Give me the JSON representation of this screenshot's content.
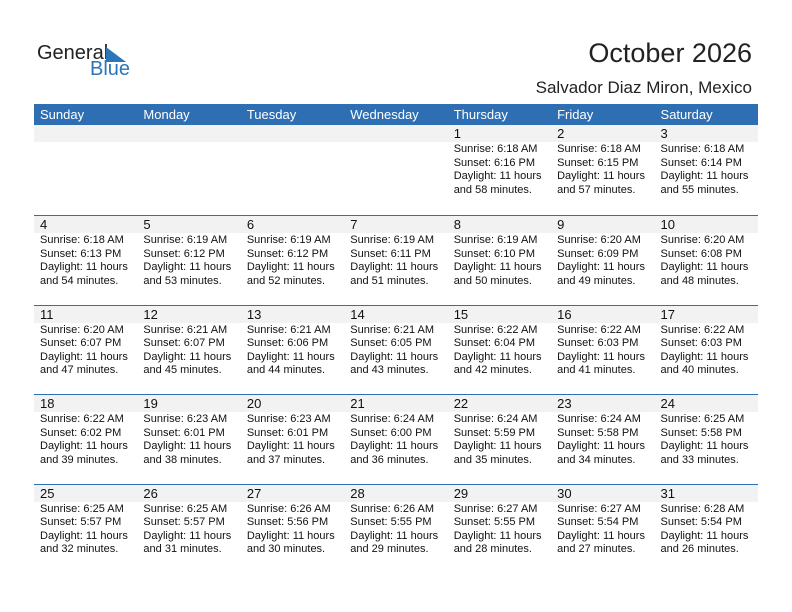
{
  "logo": {
    "text1": "General",
    "text2": "Blue"
  },
  "title": "October 2026",
  "location": "Salvador Diaz Miron, Mexico",
  "days": [
    "Sunday",
    "Monday",
    "Tuesday",
    "Wednesday",
    "Thursday",
    "Friday",
    "Saturday"
  ],
  "weeks": [
    [
      null,
      null,
      null,
      null,
      {
        "d": "1",
        "sr": "Sunrise: 6:18 AM",
        "ss": "Sunset: 6:16 PM",
        "dl": "Daylight: 11 hours",
        "dm": "and 58 minutes."
      },
      {
        "d": "2",
        "sr": "Sunrise: 6:18 AM",
        "ss": "Sunset: 6:15 PM",
        "dl": "Daylight: 11 hours",
        "dm": "and 57 minutes."
      },
      {
        "d": "3",
        "sr": "Sunrise: 6:18 AM",
        "ss": "Sunset: 6:14 PM",
        "dl": "Daylight: 11 hours",
        "dm": "and 55 minutes."
      }
    ],
    [
      {
        "d": "4",
        "sr": "Sunrise: 6:18 AM",
        "ss": "Sunset: 6:13 PM",
        "dl": "Daylight: 11 hours",
        "dm": "and 54 minutes."
      },
      {
        "d": "5",
        "sr": "Sunrise: 6:19 AM",
        "ss": "Sunset: 6:12 PM",
        "dl": "Daylight: 11 hours",
        "dm": "and 53 minutes."
      },
      {
        "d": "6",
        "sr": "Sunrise: 6:19 AM",
        "ss": "Sunset: 6:12 PM",
        "dl": "Daylight: 11 hours",
        "dm": "and 52 minutes."
      },
      {
        "d": "7",
        "sr": "Sunrise: 6:19 AM",
        "ss": "Sunset: 6:11 PM",
        "dl": "Daylight: 11 hours",
        "dm": "and 51 minutes."
      },
      {
        "d": "8",
        "sr": "Sunrise: 6:19 AM",
        "ss": "Sunset: 6:10 PM",
        "dl": "Daylight: 11 hours",
        "dm": "and 50 minutes."
      },
      {
        "d": "9",
        "sr": "Sunrise: 6:20 AM",
        "ss": "Sunset: 6:09 PM",
        "dl": "Daylight: 11 hours",
        "dm": "and 49 minutes."
      },
      {
        "d": "10",
        "sr": "Sunrise: 6:20 AM",
        "ss": "Sunset: 6:08 PM",
        "dl": "Daylight: 11 hours",
        "dm": "and 48 minutes."
      }
    ],
    [
      {
        "d": "11",
        "sr": "Sunrise: 6:20 AM",
        "ss": "Sunset: 6:07 PM",
        "dl": "Daylight: 11 hours",
        "dm": "and 47 minutes."
      },
      {
        "d": "12",
        "sr": "Sunrise: 6:21 AM",
        "ss": "Sunset: 6:07 PM",
        "dl": "Daylight: 11 hours",
        "dm": "and 45 minutes."
      },
      {
        "d": "13",
        "sr": "Sunrise: 6:21 AM",
        "ss": "Sunset: 6:06 PM",
        "dl": "Daylight: 11 hours",
        "dm": "and 44 minutes."
      },
      {
        "d": "14",
        "sr": "Sunrise: 6:21 AM",
        "ss": "Sunset: 6:05 PM",
        "dl": "Daylight: 11 hours",
        "dm": "and 43 minutes."
      },
      {
        "d": "15",
        "sr": "Sunrise: 6:22 AM",
        "ss": "Sunset: 6:04 PM",
        "dl": "Daylight: 11 hours",
        "dm": "and 42 minutes."
      },
      {
        "d": "16",
        "sr": "Sunrise: 6:22 AM",
        "ss": "Sunset: 6:03 PM",
        "dl": "Daylight: 11 hours",
        "dm": "and 41 minutes."
      },
      {
        "d": "17",
        "sr": "Sunrise: 6:22 AM",
        "ss": "Sunset: 6:03 PM",
        "dl": "Daylight: 11 hours",
        "dm": "and 40 minutes."
      }
    ],
    [
      {
        "d": "18",
        "sr": "Sunrise: 6:22 AM",
        "ss": "Sunset: 6:02 PM",
        "dl": "Daylight: 11 hours",
        "dm": "and 39 minutes."
      },
      {
        "d": "19",
        "sr": "Sunrise: 6:23 AM",
        "ss": "Sunset: 6:01 PM",
        "dl": "Daylight: 11 hours",
        "dm": "and 38 minutes."
      },
      {
        "d": "20",
        "sr": "Sunrise: 6:23 AM",
        "ss": "Sunset: 6:01 PM",
        "dl": "Daylight: 11 hours",
        "dm": "and 37 minutes."
      },
      {
        "d": "21",
        "sr": "Sunrise: 6:24 AM",
        "ss": "Sunset: 6:00 PM",
        "dl": "Daylight: 11 hours",
        "dm": "and 36 minutes."
      },
      {
        "d": "22",
        "sr": "Sunrise: 6:24 AM",
        "ss": "Sunset: 5:59 PM",
        "dl": "Daylight: 11 hours",
        "dm": "and 35 minutes."
      },
      {
        "d": "23",
        "sr": "Sunrise: 6:24 AM",
        "ss": "Sunset: 5:58 PM",
        "dl": "Daylight: 11 hours",
        "dm": "and 34 minutes."
      },
      {
        "d": "24",
        "sr": "Sunrise: 6:25 AM",
        "ss": "Sunset: 5:58 PM",
        "dl": "Daylight: 11 hours",
        "dm": "and 33 minutes."
      }
    ],
    [
      {
        "d": "25",
        "sr": "Sunrise: 6:25 AM",
        "ss": "Sunset: 5:57 PM",
        "dl": "Daylight: 11 hours",
        "dm": "and 32 minutes."
      },
      {
        "d": "26",
        "sr": "Sunrise: 6:25 AM",
        "ss": "Sunset: 5:57 PM",
        "dl": "Daylight: 11 hours",
        "dm": "and 31 minutes."
      },
      {
        "d": "27",
        "sr": "Sunrise: 6:26 AM",
        "ss": "Sunset: 5:56 PM",
        "dl": "Daylight: 11 hours",
        "dm": "and 30 minutes."
      },
      {
        "d": "28",
        "sr": "Sunrise: 6:26 AM",
        "ss": "Sunset: 5:55 PM",
        "dl": "Daylight: 11 hours",
        "dm": "and 29 minutes."
      },
      {
        "d": "29",
        "sr": "Sunrise: 6:27 AM",
        "ss": "Sunset: 5:55 PM",
        "dl": "Daylight: 11 hours",
        "dm": "and 28 minutes."
      },
      {
        "d": "30",
        "sr": "Sunrise: 6:27 AM",
        "ss": "Sunset: 5:54 PM",
        "dl": "Daylight: 11 hours",
        "dm": "and 27 minutes."
      },
      {
        "d": "31",
        "sr": "Sunrise: 6:28 AM",
        "ss": "Sunset: 5:54 PM",
        "dl": "Daylight: 11 hours",
        "dm": "and 26 minutes."
      }
    ]
  ],
  "colors": {
    "header": "#2e6fb4",
    "logo_blue": "#2b76b9",
    "day_band": "#f2f2f2"
  }
}
